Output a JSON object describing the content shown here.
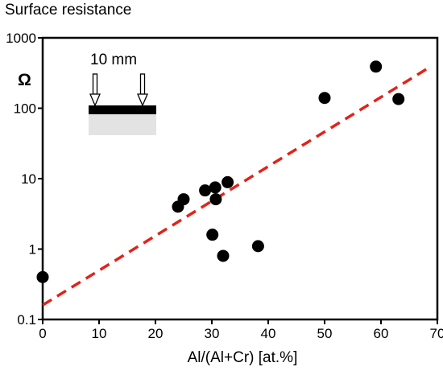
{
  "title": "Surface resistance",
  "colors": {
    "points": "#000000",
    "fit": "#e2231a",
    "substrate": "#e3e3e3",
    "film": "#000000"
  },
  "chart_data": {
    "type": "scatter",
    "title": "Surface resistance",
    "xlabel": "Al/(Al+Cr) [at.%]",
    "ylabel": "",
    "y_unit": "Ω",
    "xlim": [
      0,
      70
    ],
    "ylim": [
      0.1,
      1000
    ],
    "yscale": "log",
    "grid": false,
    "x_ticks": [
      0,
      10,
      20,
      30,
      40,
      50,
      60,
      70
    ],
    "x_tick_labels": [
      "0",
      "10",
      "20",
      "30",
      "40",
      "50",
      "60",
      "70"
    ],
    "y_ticks": [
      0.1,
      1,
      10,
      100,
      1000
    ],
    "y_tick_labels": [
      "0.1",
      "1",
      "10",
      "100",
      "1000"
    ],
    "points": [
      {
        "x": 0,
        "y": 0.4
      },
      {
        "x": 24,
        "y": 4.0
      },
      {
        "x": 25,
        "y": 5.1
      },
      {
        "x": 28.8,
        "y": 6.8
      },
      {
        "x": 30.6,
        "y": 7.5
      },
      {
        "x": 30.7,
        "y": 5.1
      },
      {
        "x": 30.1,
        "y": 1.6
      },
      {
        "x": 32.8,
        "y": 8.9
      },
      {
        "x": 32,
        "y": 0.8
      },
      {
        "x": 38.2,
        "y": 1.1
      },
      {
        "x": 50,
        "y": 140
      },
      {
        "x": 59.1,
        "y": 390
      },
      {
        "x": 63.1,
        "y": 135
      }
    ],
    "fit_line": {
      "x": [
        0,
        68.8
      ],
      "y": [
        0.16,
        390
      ]
    },
    "inset": {
      "label": "10 mm"
    }
  }
}
